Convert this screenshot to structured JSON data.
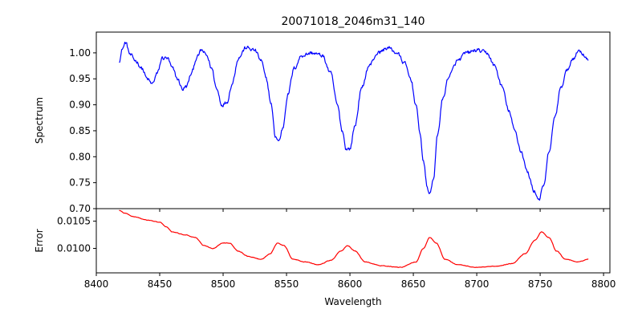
{
  "chart_data": [
    {
      "type": "line",
      "panel": "top",
      "title": "20071018_2046m31_140",
      "xlabel": "",
      "ylabel": "Spectrum",
      "xlim": [
        8400,
        8805
      ],
      "ylim": [
        0.7,
        1.04
      ],
      "xticks": [
        8400,
        8450,
        8500,
        8550,
        8600,
        8650,
        8700,
        8750,
        8800
      ],
      "yticks": [
        0.7,
        0.75,
        0.8,
        0.85,
        0.9,
        0.95,
        1.0
      ],
      "ytick_labels": [
        "0.70",
        "0.75",
        "0.80",
        "0.85",
        "0.90",
        "0.95",
        "1.00"
      ],
      "series": [
        {
          "name": "Spectrum",
          "color": "#0000ff",
          "x_start": 8418,
          "x_end": 8788,
          "noise": 0.006,
          "knots": [
            [
              8418,
              0.985
            ],
            [
              8421,
              1.01
            ],
            [
              8423,
              1.02
            ],
            [
              8427,
              0.995
            ],
            [
              8431,
              0.985
            ],
            [
              8436,
              0.97
            ],
            [
              8440,
              0.95
            ],
            [
              8444,
              0.94
            ],
            [
              8448,
              0.96
            ],
            [
              8452,
              0.99
            ],
            [
              8456,
              0.99
            ],
            [
              8460,
              0.97
            ],
            [
              8464,
              0.95
            ],
            [
              8468,
              0.93
            ],
            [
              8471,
              0.935
            ],
            [
              8475,
              0.96
            ],
            [
              8479,
              0.99
            ],
            [
              8483,
              1.005
            ],
            [
              8487,
              0.995
            ],
            [
              8491,
              0.97
            ],
            [
              8495,
              0.93
            ],
            [
              8499,
              0.9
            ],
            [
              8503,
              0.905
            ],
            [
              8507,
              0.94
            ],
            [
              8512,
              0.99
            ],
            [
              8518,
              1.01
            ],
            [
              8525,
              1.005
            ],
            [
              8530,
              0.985
            ],
            [
              8534,
              0.95
            ],
            [
              8538,
              0.9
            ],
            [
              8541,
              0.84
            ],
            [
              8544,
              0.83
            ],
            [
              8547,
              0.855
            ],
            [
              8551,
              0.92
            ],
            [
              8556,
              0.97
            ],
            [
              8562,
              0.995
            ],
            [
              8570,
              1.0
            ],
            [
              8578,
              0.995
            ],
            [
              8585,
              0.96
            ],
            [
              8590,
              0.9
            ],
            [
              8594,
              0.85
            ],
            [
              8597,
              0.815
            ],
            [
              8600,
              0.815
            ],
            [
              8604,
              0.86
            ],
            [
              8609,
              0.93
            ],
            [
              8615,
              0.975
            ],
            [
              8622,
              1.0
            ],
            [
              8630,
              1.01
            ],
            [
              8637,
              1.0
            ],
            [
              8643,
              0.98
            ],
            [
              8648,
              0.95
            ],
            [
              8652,
              0.9
            ],
            [
              8655,
              0.85
            ],
            [
              8658,
              0.79
            ],
            [
              8661,
              0.74
            ],
            [
              8663,
              0.728
            ],
            [
              8666,
              0.76
            ],
            [
              8669,
              0.84
            ],
            [
              8673,
              0.91
            ],
            [
              8678,
              0.955
            ],
            [
              8685,
              0.985
            ],
            [
              8692,
              1.0
            ],
            [
              8700,
              1.005
            ],
            [
              8708,
              1.0
            ],
            [
              8714,
              0.975
            ],
            [
              8720,
              0.935
            ],
            [
              8725,
              0.89
            ],
            [
              8730,
              0.85
            ],
            [
              8735,
              0.81
            ],
            [
              8740,
              0.77
            ],
            [
              8745,
              0.735
            ],
            [
              8749,
              0.718
            ],
            [
              8753,
              0.745
            ],
            [
              8757,
              0.81
            ],
            [
              8762,
              0.88
            ],
            [
              8766,
              0.93
            ],
            [
              8771,
              0.965
            ],
            [
              8776,
              0.99
            ],
            [
              8781,
              1.005
            ],
            [
              8785,
              0.995
            ],
            [
              8788,
              0.985
            ]
          ]
        }
      ]
    },
    {
      "type": "line",
      "panel": "bottom",
      "title": "",
      "xlabel": "Wavelength",
      "ylabel": "Error",
      "xlim": [
        8400,
        8805
      ],
      "ylim": [
        0.00955,
        0.01073
      ],
      "xticks": [
        8400,
        8450,
        8500,
        8550,
        8600,
        8650,
        8700,
        8750,
        8800
      ],
      "xtick_labels": [
        "8400",
        "8450",
        "8500",
        "8550",
        "8600",
        "8650",
        "8700",
        "8750",
        "8800"
      ],
      "yticks": [
        0.01,
        0.0105
      ],
      "ytick_labels": [
        "0.0100",
        "0.0105"
      ],
      "series": [
        {
          "name": "Error",
          "color": "#ff0000",
          "x_start": 8418,
          "x_end": 8788,
          "noise": 8e-06,
          "knots": [
            [
              8418,
              0.0107
            ],
            [
              8422,
              0.01065
            ],
            [
              8430,
              0.01058
            ],
            [
              8440,
              0.01052
            ],
            [
              8450,
              0.01048
            ],
            [
              8455,
              0.0104
            ],
            [
              8460,
              0.0103
            ],
            [
              8470,
              0.01025
            ],
            [
              8478,
              0.0102
            ],
            [
              8485,
              0.01005
            ],
            [
              8492,
              0.01
            ],
            [
              8500,
              0.0101
            ],
            [
              8505,
              0.0101
            ],
            [
              8512,
              0.00995
            ],
            [
              8520,
              0.00985
            ],
            [
              8530,
              0.0098
            ],
            [
              8537,
              0.0099
            ],
            [
              8543,
              0.0101
            ],
            [
              8548,
              0.01005
            ],
            [
              8555,
              0.0098
            ],
            [
              8565,
              0.00975
            ],
            [
              8575,
              0.0097
            ],
            [
              8585,
              0.00978
            ],
            [
              8593,
              0.00995
            ],
            [
              8598,
              0.01005
            ],
            [
              8604,
              0.00995
            ],
            [
              8612,
              0.00975
            ],
            [
              8625,
              0.00968
            ],
            [
              8640,
              0.00965
            ],
            [
              8652,
              0.00975
            ],
            [
              8658,
              0.01
            ],
            [
              8663,
              0.0102
            ],
            [
              8668,
              0.0101
            ],
            [
              8675,
              0.0098
            ],
            [
              8685,
              0.0097
            ],
            [
              8700,
              0.00965
            ],
            [
              8715,
              0.00967
            ],
            [
              8728,
              0.00972
            ],
            [
              8738,
              0.0099
            ],
            [
              8746,
              0.01015
            ],
            [
              8751,
              0.0103
            ],
            [
              8757,
              0.0102
            ],
            [
              8763,
              0.00995
            ],
            [
              8770,
              0.0098
            ],
            [
              8780,
              0.00975
            ],
            [
              8788,
              0.0098
            ]
          ]
        }
      ]
    }
  ]
}
